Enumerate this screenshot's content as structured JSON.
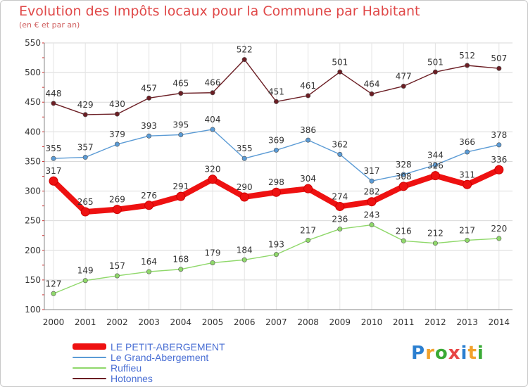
{
  "chart_data": {
    "type": "line",
    "title": "Evolution des Impôts locaux pour la Commune par Habitant",
    "subtitle": "(en € et par an)",
    "x": [
      "2000",
      "2001",
      "2002",
      "2003",
      "2004",
      "2005",
      "2006",
      "2007",
      "2008",
      "2009",
      "2010",
      "2011",
      "2012",
      "2013",
      "2014"
    ],
    "ylim": [
      100,
      550
    ],
    "yticks": [
      100,
      150,
      200,
      250,
      300,
      350,
      400,
      450,
      500,
      550
    ],
    "grid": true,
    "legend_position": "bottom-left",
    "series": [
      {
        "name": "Hotonnes",
        "color": "#6b1e24",
        "values": [
          448,
          429,
          430,
          457,
          465,
          466,
          522,
          451,
          461,
          501,
          464,
          477,
          501,
          512,
          507
        ]
      },
      {
        "name": "Le Grand-Abergement",
        "color": "#5b9bd5",
        "values": [
          355,
          357,
          379,
          393,
          395,
          404,
          355,
          369,
          386,
          362,
          317,
          328,
          344,
          366,
          378
        ]
      },
      {
        "name": "Ruffieu",
        "color": "#8fd86a",
        "values": [
          127,
          149,
          157,
          164,
          168,
          179,
          184,
          193,
          217,
          236,
          243,
          216,
          212,
          217,
          220
        ]
      },
      {
        "name": "LE PETIT-ABERGEMENT",
        "color": "#ee1111",
        "values": [
          317,
          265,
          269,
          276,
          291,
          320,
          290,
          298,
          304,
          274,
          282,
          308,
          326,
          311,
          336
        ]
      }
    ]
  },
  "legend": {
    "items": [
      {
        "label": "LE PETIT-ABERGEMENT",
        "color": "#ee1111"
      },
      {
        "label": "Le Grand-Abergement",
        "color": "#5b9bd5"
      },
      {
        "label": "Ruffieu",
        "color": "#8fd86a"
      },
      {
        "label": "Hotonnes",
        "color": "#6b1e24"
      }
    ]
  },
  "logo": {
    "letters": [
      "P",
      "r",
      "o",
      "x",
      "i",
      "t",
      "i"
    ],
    "colors": [
      "#2b7fd0",
      "#f2a22c",
      "#3aaa35",
      "#e84545",
      "#2b7fd0",
      "#f2a22c",
      "#3aaa35"
    ]
  }
}
